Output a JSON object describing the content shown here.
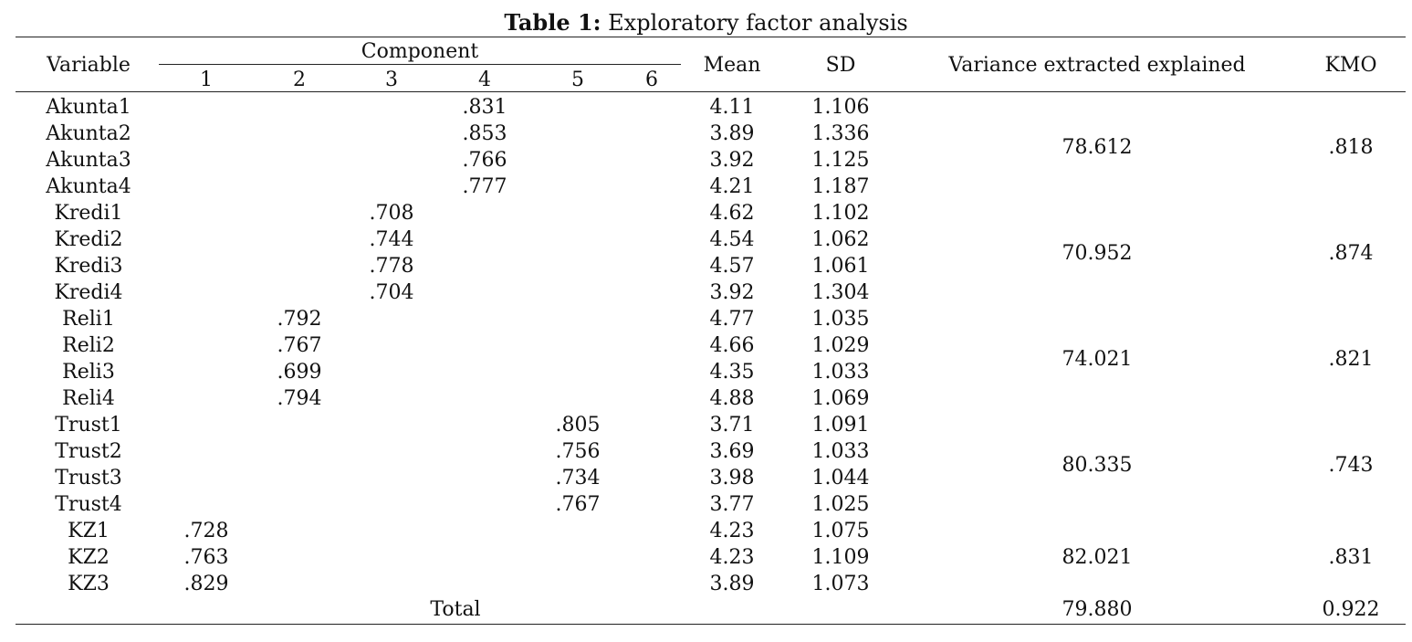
{
  "caption": {
    "label": "Table 1:",
    "title": "Exploratory factor analysis"
  },
  "headers": {
    "variable": "Variable",
    "component": "Component",
    "components": [
      "1",
      "2",
      "3",
      "4",
      "5",
      "6"
    ],
    "mean": "Mean",
    "sd": "SD",
    "variance": "Variance extracted explained",
    "kmo": "KMO"
  },
  "rows": [
    {
      "variable": "Akunta1",
      "loadings": [
        "",
        "",
        "",
        ".831",
        "",
        ""
      ],
      "mean": "4.11",
      "sd": "1.106"
    },
    {
      "variable": "Akunta2",
      "loadings": [
        "",
        "",
        "",
        ".853",
        "",
        ""
      ],
      "mean": "3.89",
      "sd": "1.336"
    },
    {
      "variable": "Akunta3",
      "loadings": [
        "",
        "",
        "",
        ".766",
        "",
        ""
      ],
      "mean": "3.92",
      "sd": "1.125"
    },
    {
      "variable": "Akunta4",
      "loadings": [
        "",
        "",
        "",
        ".777",
        "",
        ""
      ],
      "mean": "4.21",
      "sd": "1.187"
    },
    {
      "variable": "Kredi1",
      "loadings": [
        "",
        "",
        ".708",
        "",
        "",
        ""
      ],
      "mean": "4.62",
      "sd": "1.102"
    },
    {
      "variable": "Kredi2",
      "loadings": [
        "",
        "",
        ".744",
        "",
        "",
        ""
      ],
      "mean": "4.54",
      "sd": "1.062"
    },
    {
      "variable": "Kredi3",
      "loadings": [
        "",
        "",
        ".778",
        "",
        "",
        ""
      ],
      "mean": "4.57",
      "sd": "1.061"
    },
    {
      "variable": "Kredi4",
      "loadings": [
        "",
        "",
        ".704",
        "",
        "",
        ""
      ],
      "mean": "3.92",
      "sd": "1.304"
    },
    {
      "variable": "Reli1",
      "loadings": [
        "",
        ".792",
        "",
        "",
        "",
        ""
      ],
      "mean": "4.77",
      "sd": "1.035"
    },
    {
      "variable": "Reli2",
      "loadings": [
        "",
        ".767",
        "",
        "",
        "",
        ""
      ],
      "mean": "4.66",
      "sd": "1.029"
    },
    {
      "variable": "Reli3",
      "loadings": [
        "",
        ".699",
        "",
        "",
        "",
        ""
      ],
      "mean": "4.35",
      "sd": "1.033"
    },
    {
      "variable": "Reli4",
      "loadings": [
        "",
        ".794",
        "",
        "",
        "",
        ""
      ],
      "mean": "4.88",
      "sd": "1.069"
    },
    {
      "variable": "Trust1",
      "loadings": [
        "",
        "",
        "",
        "",
        ".805",
        ""
      ],
      "mean": "3.71",
      "sd": "1.091"
    },
    {
      "variable": "Trust2",
      "loadings": [
        "",
        "",
        "",
        "",
        ".756",
        ""
      ],
      "mean": "3.69",
      "sd": "1.033"
    },
    {
      "variable": "Trust3",
      "loadings": [
        "",
        "",
        "",
        "",
        ".734",
        ""
      ],
      "mean": "3.98",
      "sd": "1.044"
    },
    {
      "variable": "Trust4",
      "loadings": [
        "",
        "",
        "",
        "",
        ".767",
        ""
      ],
      "mean": "3.77",
      "sd": "1.025"
    },
    {
      "variable": "KZ1",
      "loadings": [
        ".728",
        "",
        "",
        "",
        "",
        ""
      ],
      "mean": "4.23",
      "sd": "1.075"
    },
    {
      "variable": "KZ2",
      "loadings": [
        ".763",
        "",
        "",
        "",
        "",
        ""
      ],
      "mean": "4.23",
      "sd": "1.109"
    },
    {
      "variable": "KZ3",
      "loadings": [
        ".829",
        "",
        "",
        "",
        "",
        ""
      ],
      "mean": "3.89",
      "sd": "1.073"
    }
  ],
  "groups": [
    {
      "start": 0,
      "count": 4,
      "variance": "78.612",
      "kmo": ".818"
    },
    {
      "start": 4,
      "count": 4,
      "variance": "70.952",
      "kmo": ".874"
    },
    {
      "start": 8,
      "count": 4,
      "variance": "74.021",
      "kmo": ".821"
    },
    {
      "start": 12,
      "count": 4,
      "variance": "80.335",
      "kmo": ".743"
    },
    {
      "start": 16,
      "count": 3,
      "variance": "82.021",
      "kmo": ".831"
    }
  ],
  "total": {
    "label": "Total",
    "variance": "79.880",
    "kmo": "0.922"
  }
}
